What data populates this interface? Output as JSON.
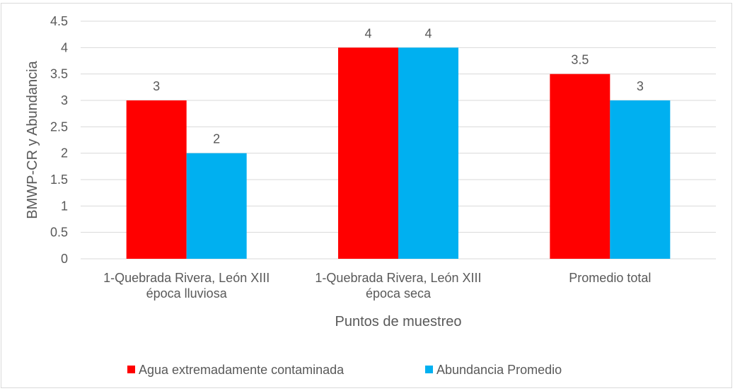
{
  "chart_data": {
    "type": "bar",
    "title": "",
    "xlabel": "Puntos de muestreo",
    "ylabel": "BMWP-CR y Abundancia",
    "ylim": [
      0,
      4.5
    ],
    "yticks": [
      "0",
      "0.5",
      "1",
      "1.5",
      "2",
      "2.5",
      "3",
      "3.5",
      "4",
      "4.5"
    ],
    "grid": true,
    "legend_position": "bottom",
    "categories": [
      [
        "1-Quebrada Rivera, León XIII",
        "época lluviosa"
      ],
      [
        "1-Quebrada Rivera, León XIII",
        "época seca"
      ],
      [
        "Promedio total"
      ]
    ],
    "series": [
      {
        "name": "Agua extremadamente contaminada",
        "color": "#FF0000",
        "values": [
          3,
          4,
          3.5
        ],
        "labels": [
          "3",
          "4",
          "3.5"
        ]
      },
      {
        "name": "Abundancia Promedio",
        "color": "#00B0F0",
        "values": [
          2,
          4,
          3
        ],
        "labels": [
          "2",
          "4",
          "3"
        ]
      }
    ]
  }
}
